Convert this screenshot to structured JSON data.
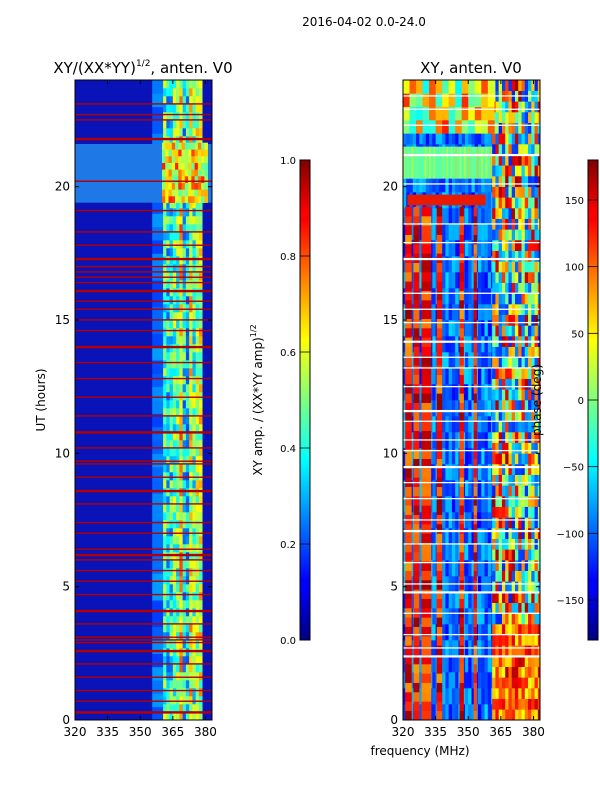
{
  "chart_data": {
    "type": "heatmap",
    "suptitle": "2016-04-02 0.0-24.0",
    "xlabel": "frequency (MHz)",
    "panels": [
      {
        "id": "amp",
        "title": "XY/(XX*YY)",
        "title_sup": "1/2",
        "title_suffix": ", anten. V0",
        "ylabel": "UT (hours)",
        "xlim": [
          320,
          383
        ],
        "ylim": [
          0,
          24
        ],
        "xticks": [
          320,
          335,
          350,
          365,
          380
        ],
        "yticks": [
          0,
          5,
          10,
          15,
          20
        ],
        "colorbar": {
          "label": "XY amp. / (XX*YY amp)",
          "label_sup": "1/2",
          "range": [
            0.0,
            1.0
          ],
          "ticks": [
            "0.0",
            "0.2",
            "0.4",
            "0.6",
            "0.8",
            "1.0"
          ]
        },
        "bright_band_MHz": [
          360.5,
          378.5
        ],
        "dim_band_MHz": [
          355.5,
          360.5
        ],
        "bright_block_hours": [
          19.4,
          21.6
        ],
        "flagged_hours": [
          0.3,
          0.7,
          1.1,
          1.6,
          2.1,
          2.6,
          2.9,
          3.0,
          3.1,
          3.6,
          4.1,
          4.7,
          5.2,
          5.6,
          6.0,
          6.2,
          6.4,
          7.0,
          7.4,
          8.1,
          8.6,
          9.1,
          9.6,
          9.7,
          10.2,
          10.8,
          11.4,
          12.1,
          12.8,
          13.4,
          14.0,
          14.6,
          15.0,
          15.4,
          15.7,
          16.1,
          16.4,
          16.6,
          16.8,
          17.0,
          17.3,
          17.8,
          18.3,
          19.1,
          20.2,
          21.8,
          22.5,
          22.7,
          23.1
        ]
      },
      {
        "id": "phase",
        "title": "XY, anten. V0",
        "xlim": [
          320,
          383
        ],
        "ylim": [
          0,
          24
        ],
        "xticks": [
          320,
          335,
          350,
          365,
          380
        ],
        "yticks": [
          0,
          5,
          10,
          15,
          20
        ],
        "colorbar": {
          "label": "phase (deg)",
          "range": [
            -180,
            180
          ],
          "ticks": [
            "−150",
            "−100",
            "−50",
            "0",
            "50",
            "100",
            "150"
          ]
        },
        "high_phase_bands_MHz": [
          [
            321,
            324
          ],
          [
            324.8,
            327.5
          ],
          [
            328.5,
            333
          ],
          [
            335.5,
            338
          ],
          [
            346,
            348
          ],
          [
            352.5,
            354
          ]
        ],
        "mixed_band_MHz": [
          361,
          383
        ],
        "green_block_hours": [
          20.3,
          21.5
        ],
        "red_streak_hours": [
          19.3,
          19.7
        ],
        "white_gap_hours": [
          2.4,
          2.7,
          3.2,
          4.0,
          4.8,
          5.1,
          5.9,
          6.6,
          7.1,
          7.5,
          8.3,
          8.9,
          9.5,
          10.1,
          10.5,
          11.2,
          11.6,
          12.5,
          13.2,
          13.6,
          14.2,
          14.9,
          15.4,
          16.0,
          17.3,
          17.9,
          18.6,
          20.1,
          21.2,
          22.3,
          22.9,
          23.4
        ]
      }
    ]
  }
}
